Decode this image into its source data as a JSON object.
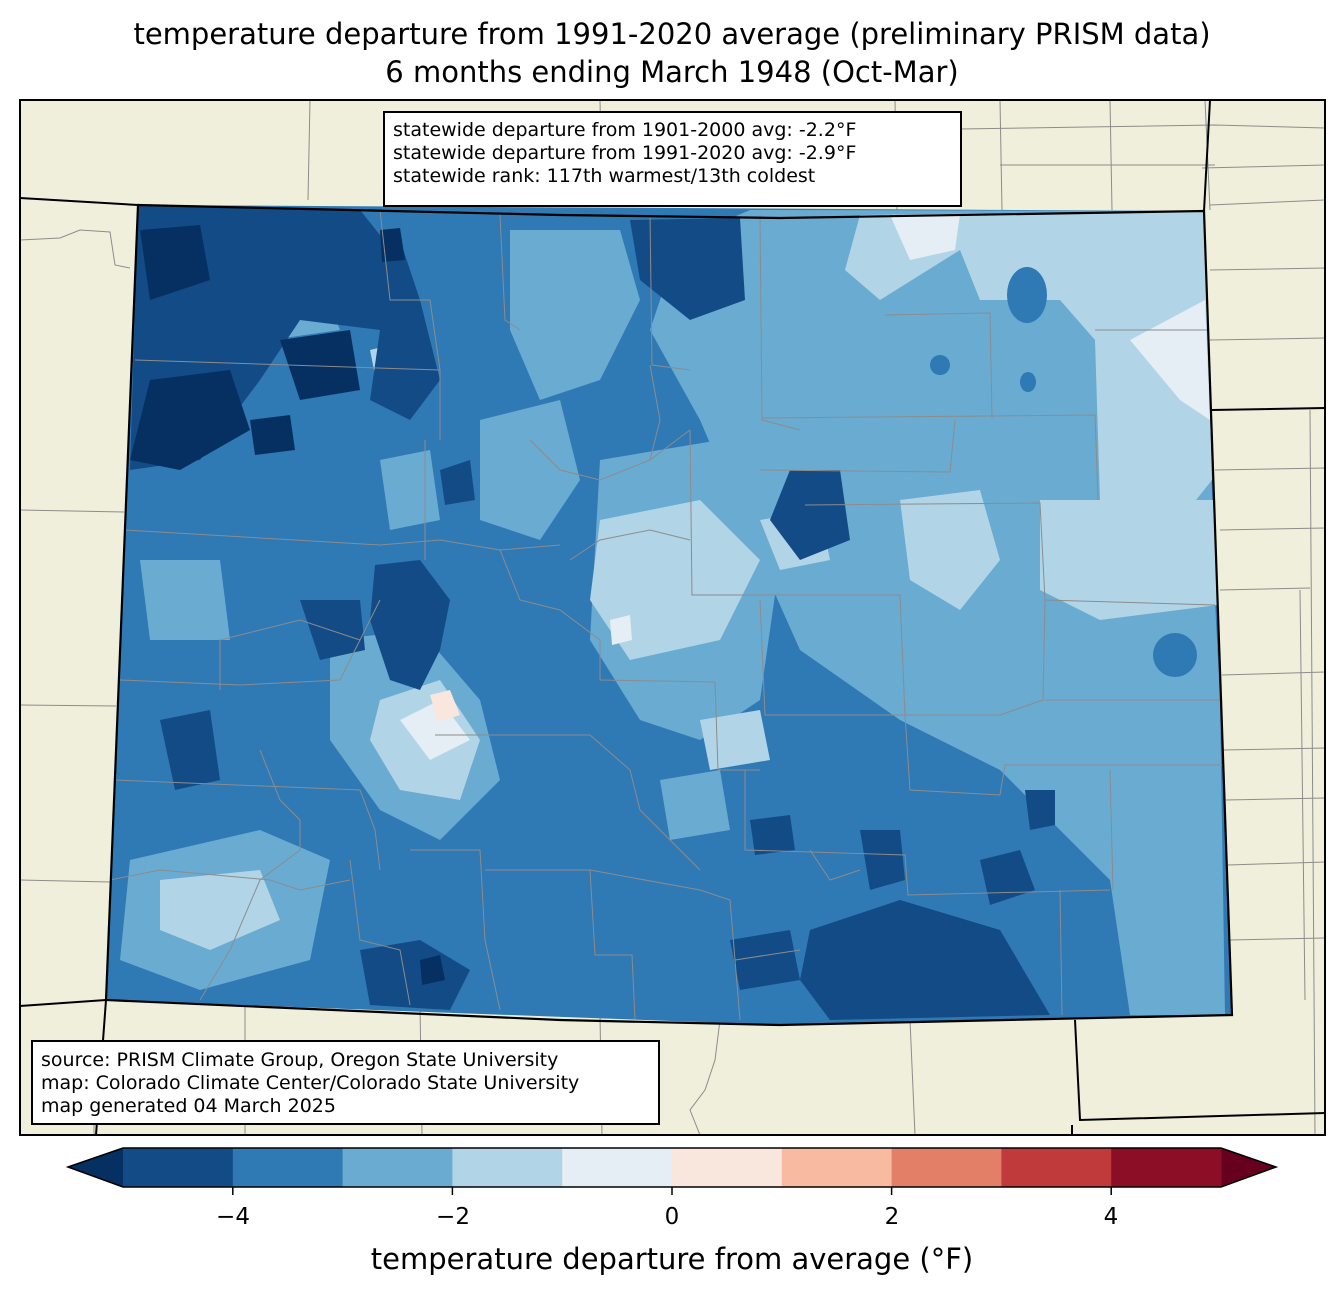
{
  "title": {
    "line1": "temperature departure from 1991-2020 average (preliminary PRISM data)",
    "line2": "6 months ending March 1948 (Oct-Mar)"
  },
  "stats": {
    "line1": "statewide departure from 1901-2000 avg: -2.2°F",
    "line2": "statewide departure from 1991-2020 avg: -2.9°F",
    "line3": "statewide rank: 117th warmest/13th coldest"
  },
  "source": {
    "line1": "source: PRISM Climate Group, Oregon State University",
    "line2": "map: Colorado Climate Center/Colorado State University",
    "line3": "map generated 04 March 2025"
  },
  "colorbar": {
    "label": "temperature departure from average (°F)",
    "ticks": [
      "−4",
      "−2",
      "0",
      "2",
      "4"
    ],
    "bins": [
      {
        "min": -5,
        "max": -4,
        "color": "#134b87"
      },
      {
        "min": -4,
        "max": -3,
        "color": "#2f79b5"
      },
      {
        "min": -3,
        "max": -2,
        "color": "#6aabd1"
      },
      {
        "min": -2,
        "max": -1,
        "color": "#b1d5e7"
      },
      {
        "min": -1,
        "max": 0,
        "color": "#e4eef4"
      },
      {
        "min": 0,
        "max": 1,
        "color": "#f9e6dd"
      },
      {
        "min": 1,
        "max": 2,
        "color": "#f8bba1"
      },
      {
        "min": 2,
        "max": 3,
        "color": "#e27f66"
      },
      {
        "min": 3,
        "max": 4,
        "color": "#c03a3c"
      },
      {
        "min": 4,
        "max": 5,
        "color": "#8b0d26"
      }
    ],
    "under_color": "#053061",
    "over_color": "#67001f"
  },
  "colors": {
    "land": "#efefdc",
    "darkest_blue": "#053061",
    "dark_blue": "#134b87",
    "mid_blue": "#2f79b5",
    "light_blue": "#6aabd1",
    "pale_blue": "#b1d5e7",
    "near_white": "#e4eef4",
    "pale_pink": "#f9e6dd"
  }
}
